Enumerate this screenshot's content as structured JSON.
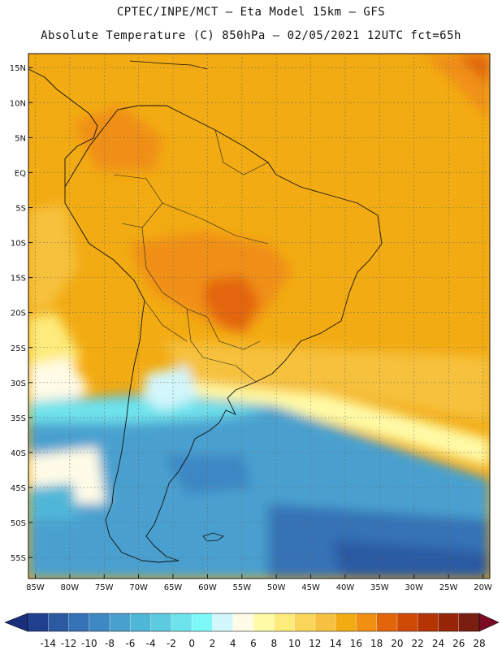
{
  "header": {
    "line1": "CPTEC/INPE/MCT –  Eta Model 15km – GFS",
    "line2": "Absolute Temperature (C) 850hPa – 02/05/2021 12UTC fct=65h"
  },
  "map": {
    "lat_labels": [
      "15N",
      "10N",
      "5N",
      "EQ",
      "5S",
      "10S",
      "15S",
      "20S",
      "25S",
      "30S",
      "35S",
      "40S",
      "45S",
      "50S",
      "55S"
    ],
    "lon_labels": [
      "85W",
      "80W",
      "75W",
      "70W",
      "65W",
      "60W",
      "55W",
      "50W",
      "45W",
      "40W",
      "35W",
      "30W",
      "25W",
      "20W"
    ],
    "lat_range": [
      17,
      -58
    ],
    "lon_range": [
      -86,
      -19
    ]
  },
  "colorbar": {
    "ticks": [
      "-14",
      "-12",
      "-10",
      "-8",
      "-6",
      "-4",
      "-2",
      "0",
      "2",
      "4",
      "6",
      "8",
      "10",
      "12",
      "14",
      "16",
      "18",
      "20",
      "22",
      "24",
      "26",
      "28"
    ],
    "colors": [
      "#1f3f8f",
      "#2b5aa3",
      "#3572b6",
      "#3e88c4",
      "#48a0cf",
      "#50b6d8",
      "#5ccbe0",
      "#6fe3ec",
      "#7ef9f9",
      "#d2f6fb",
      "#fffbe6",
      "#fffaa6",
      "#fdeb7c",
      "#f9d65a",
      "#f6c13e",
      "#f2ab12",
      "#f08f12",
      "#e3650a",
      "#cf4a05",
      "#b43404",
      "#962507",
      "#7a1e10"
    ],
    "min_arrow_color": "#1a2f7c",
    "max_arrow_color": "#7a0a24"
  }
}
